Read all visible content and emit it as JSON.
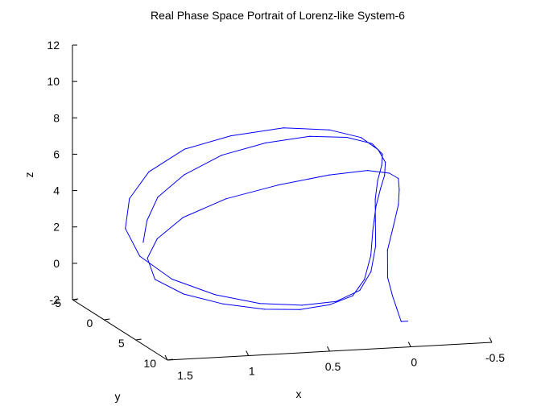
{
  "chart_data": {
    "type": "line",
    "title": "Real Phase Space Portrait of Lorenz-like System-6",
    "xlabel": "x",
    "ylabel": "y",
    "zlabel": "z",
    "x_ticks": [
      "1.5",
      "1",
      "0.5",
      "0",
      "-0.5"
    ],
    "y_ticks": [
      "-5",
      "0",
      "5",
      "10"
    ],
    "z_ticks": [
      "-2",
      "0",
      "2",
      "4",
      "6",
      "8",
      "10",
      "12"
    ],
    "xlim": [
      1.5,
      -0.5
    ],
    "ylim": [
      -5,
      10
    ],
    "zlim": [
      -2,
      12
    ],
    "grid": false,
    "line_color": "#0000ff",
    "series": [
      {
        "points": [
          [
            0.0,
            9.5,
            -0.7
          ],
          [
            0.04,
            9.5,
            -0.7
          ],
          [
            0.06,
            9.3,
            0.0
          ],
          [
            0.07,
            8.9,
            0.6
          ],
          [
            0.08,
            8.4,
            1.5
          ],
          [
            0.05,
            7.6,
            2.8
          ],
          [
            -0.02,
            6.8,
            4.0
          ],
          [
            -0.08,
            6.0,
            4.9
          ],
          [
            -0.12,
            5.1,
            5.5
          ],
          [
            -0.15,
            4.2,
            5.9
          ],
          [
            -0.13,
            3.3,
            6.0
          ],
          [
            -0.03,
            2.4,
            6.0
          ],
          [
            0.18,
            1.7,
            5.7
          ],
          [
            0.48,
            1.3,
            5.2
          ],
          [
            0.8,
            1.3,
            4.6
          ],
          [
            1.08,
            1.7,
            3.8
          ],
          [
            1.27,
            2.5,
            2.9
          ],
          [
            1.37,
            3.5,
            2.1
          ],
          [
            1.37,
            4.7,
            1.2
          ],
          [
            1.24,
            5.9,
            0.6
          ],
          [
            1.04,
            7.0,
            0.2
          ],
          [
            0.82,
            7.9,
            0.0
          ],
          [
            0.62,
            8.4,
            0.0
          ],
          [
            0.44,
            8.5,
            0.2
          ],
          [
            0.28,
            8.0,
            0.5
          ],
          [
            0.18,
            7.3,
            1.2
          ],
          [
            0.11,
            6.5,
            2.3
          ],
          [
            0.07,
            5.8,
            3.5
          ],
          [
            0.02,
            5.0,
            4.6
          ],
          [
            -0.04,
            4.2,
            5.4
          ],
          [
            -0.1,
            3.3,
            5.9
          ],
          [
            -0.14,
            2.4,
            6.4
          ],
          [
            -0.13,
            1.5,
            6.9
          ],
          [
            -0.06,
            0.6,
            7.4
          ],
          [
            0.1,
            -0.3,
            7.7
          ],
          [
            0.36,
            -0.9,
            7.8
          ],
          [
            0.68,
            -1.0,
            7.5
          ],
          [
            0.98,
            -0.6,
            7.0
          ],
          [
            1.24,
            0.4,
            6.1
          ],
          [
            1.41,
            1.7,
            5.0
          ],
          [
            1.49,
            3.1,
            3.7
          ],
          [
            1.46,
            4.6,
            2.5
          ],
          [
            1.32,
            6.1,
            1.5
          ],
          [
            1.1,
            7.3,
            0.8
          ],
          [
            0.86,
            8.2,
            0.4
          ],
          [
            0.62,
            8.7,
            0.3
          ],
          [
            0.41,
            8.7,
            0.4
          ],
          [
            0.24,
            8.1,
            0.8
          ],
          [
            0.14,
            7.3,
            1.6
          ],
          [
            0.08,
            6.5,
            2.8
          ],
          [
            0.05,
            5.7,
            4.0
          ],
          [
            0.02,
            4.9,
            5.0
          ],
          [
            -0.03,
            4.0,
            5.8
          ],
          [
            -0.09,
            3.1,
            6.4
          ],
          [
            -0.13,
            2.2,
            6.8
          ],
          [
            -0.1,
            1.3,
            7.2
          ],
          [
            0.02,
            0.4,
            7.4
          ],
          [
            0.22,
            -0.3,
            7.4
          ],
          [
            0.48,
            -0.6,
            7.1
          ],
          [
            0.76,
            -0.4,
            6.6
          ],
          [
            1.02,
            0.3,
            5.8
          ],
          [
            1.22,
            1.3,
            4.9
          ],
          [
            1.33,
            2.4,
            3.9
          ],
          [
            1.38,
            3.1,
            2.9
          ]
        ]
      }
    ]
  }
}
